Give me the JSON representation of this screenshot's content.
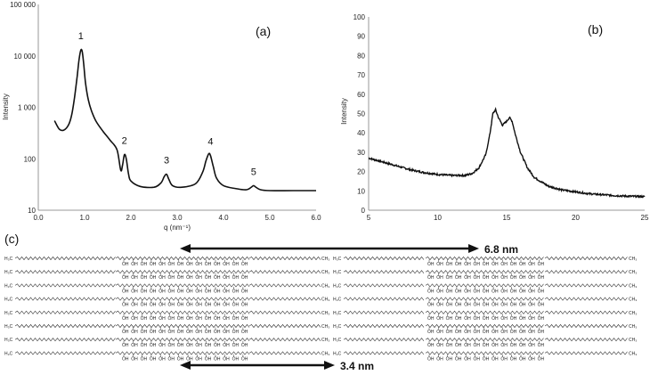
{
  "chart_data": [
    {
      "panel_label": "(a)",
      "type": "line",
      "xlabel": "q (nm⁻¹)",
      "ylabel": "Intensity",
      "xlim": [
        0.0,
        6.0
      ],
      "ylim": [
        10,
        100000
      ],
      "y_scale": "log",
      "x_ticks": [
        "0.0",
        "1.0",
        "2.0",
        "3.0",
        "4.0",
        "5.0",
        "6.0"
      ],
      "y_ticks": [
        "10",
        "100",
        "1 000",
        "10 000",
        "100 000"
      ],
      "grid": false,
      "x": [
        0.35,
        0.45,
        0.55,
        0.65,
        0.72,
        0.78,
        0.84,
        0.88,
        0.92,
        0.95,
        0.98,
        1.02,
        1.08,
        1.15,
        1.25,
        1.4,
        1.55,
        1.7,
        1.78,
        1.82,
        1.86,
        1.9,
        1.95,
        2.0,
        2.2,
        2.5,
        2.65,
        2.72,
        2.77,
        2.82,
        2.9,
        3.1,
        3.4,
        3.55,
        3.62,
        3.68,
        3.72,
        3.78,
        3.85,
        4.0,
        4.3,
        4.5,
        4.6,
        4.65,
        4.7,
        4.8,
        5.0,
        5.5,
        6.0
      ],
      "y": [
        550,
        380,
        360,
        450,
        700,
        1500,
        4000,
        8500,
        13000,
        12000,
        7000,
        3000,
        1400,
        850,
        530,
        340,
        230,
        150,
        60,
        75,
        120,
        100,
        50,
        37,
        29,
        28,
        34,
        45,
        50,
        40,
        30,
        28,
        33,
        55,
        90,
        125,
        115,
        70,
        42,
        30,
        26,
        25,
        28,
        30,
        28,
        25,
        24,
        24,
        24
      ],
      "peak_labels": [
        {
          "label": "1",
          "x": 0.92
        },
        {
          "label": "2",
          "x": 1.86
        },
        {
          "label": "3",
          "x": 2.77
        },
        {
          "label": "4",
          "x": 3.72
        },
        {
          "label": "5",
          "x": 4.65
        }
      ]
    },
    {
      "panel_label": "(b)",
      "type": "line",
      "xlabel": "",
      "ylabel": "Intensity",
      "xlim": [
        5,
        25
      ],
      "ylim": [
        0,
        100
      ],
      "x_ticks": [
        "5",
        "10",
        "15",
        "20",
        "25"
      ],
      "y_ticks": [
        "0",
        "10",
        "20",
        "30",
        "40",
        "50",
        "60",
        "70",
        "80",
        "90",
        "100"
      ],
      "grid": false,
      "x": [
        5,
        6,
        7,
        8,
        9,
        10,
        11,
        12,
        12.5,
        13,
        13.5,
        13.8,
        14,
        14.2,
        14.4,
        14.7,
        15,
        15.2,
        15.4,
        15.6,
        16,
        16.5,
        17,
        18,
        19,
        20,
        21,
        22,
        23,
        24,
        25
      ],
      "y": [
        27,
        25,
        23,
        21,
        19.5,
        18.5,
        18,
        18,
        19,
        22,
        29,
        40,
        50,
        52,
        48,
        44,
        46,
        48,
        46,
        40,
        30,
        22,
        17,
        12.5,
        10.5,
        9.5,
        8.5,
        8,
        7.5,
        7.2,
        7
      ]
    }
  ],
  "panel_c": {
    "label": "(c)",
    "formula_labels": [
      "H₃C",
      "OH",
      "CH₃"
    ],
    "bilayer_dimension": "6.8 nm",
    "monolayer_dimension": "3.4 nm",
    "row_count": 8
  }
}
